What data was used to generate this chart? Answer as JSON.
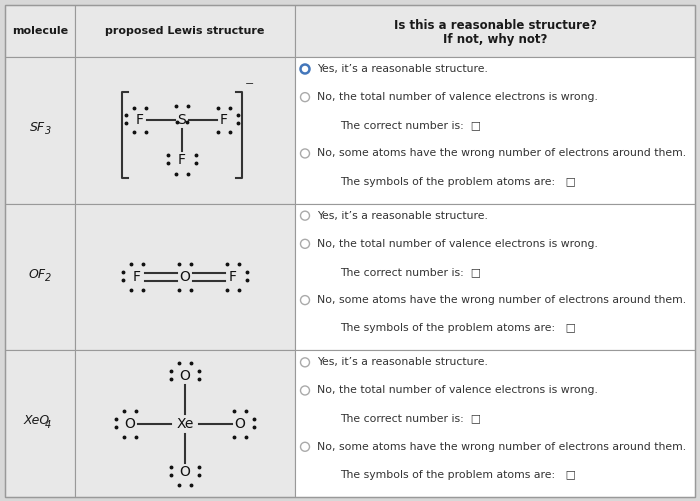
{
  "title_line1": "Is this a reasonable structure?",
  "title_line2": "If not, why not?",
  "col0_header": "molecule",
  "col1_header": "proposed Lewis structure",
  "bg_color": "#d8d8d8",
  "cell_bg": "#e8e8e8",
  "white": "#ffffff",
  "border_color": "#999999",
  "text_color": "#1a1a1a",
  "radio_selected_color": "#4477bb",
  "radio_unselected_color": "#aaaaaa",
  "input_box_color": "#6666cc",
  "rows": [
    {
      "molecule_main": "SF",
      "molecule_sub": "3",
      "options": [
        {
          "text": "Yes, it’s a reasonable structure.",
          "selected": true,
          "indent": false
        },
        {
          "text": "No, the total number of valence electrons is wrong.",
          "selected": false,
          "indent": false
        },
        {
          "text": "The correct number is:  □",
          "indent": true
        },
        {
          "text": "No, some atoms have the wrong number of electrons around them.",
          "selected": false,
          "indent": false
        },
        {
          "text": "The symbols of the problem atoms are:   □",
          "indent": true
        }
      ]
    },
    {
      "molecule_main": "OF",
      "molecule_sub": "2",
      "options": [
        {
          "text": "Yes, it’s a reasonable structure.",
          "selected": false,
          "indent": false
        },
        {
          "text": "No, the total number of valence electrons is wrong.",
          "selected": false,
          "indent": false
        },
        {
          "text": "The correct number is:  □",
          "indent": true
        },
        {
          "text": "No, some atoms have the wrong number of electrons around them.",
          "selected": false,
          "indent": false
        },
        {
          "text": "The symbols of the problem atoms are:   □",
          "indent": true
        }
      ]
    },
    {
      "molecule_main": "XeO",
      "molecule_sub": "4",
      "options": [
        {
          "text": "Yes, it’s a reasonable structure.",
          "selected": false,
          "indent": false
        },
        {
          "text": "No, the total number of valence electrons is wrong.",
          "selected": false,
          "indent": false
        },
        {
          "text": "The correct number is:  □",
          "indent": true
        },
        {
          "text": "No, some atoms have the wrong number of electrons around them.",
          "selected": false,
          "indent": false
        },
        {
          "text": "The symbols of the problem atoms are:   □",
          "indent": true
        }
      ]
    }
  ]
}
